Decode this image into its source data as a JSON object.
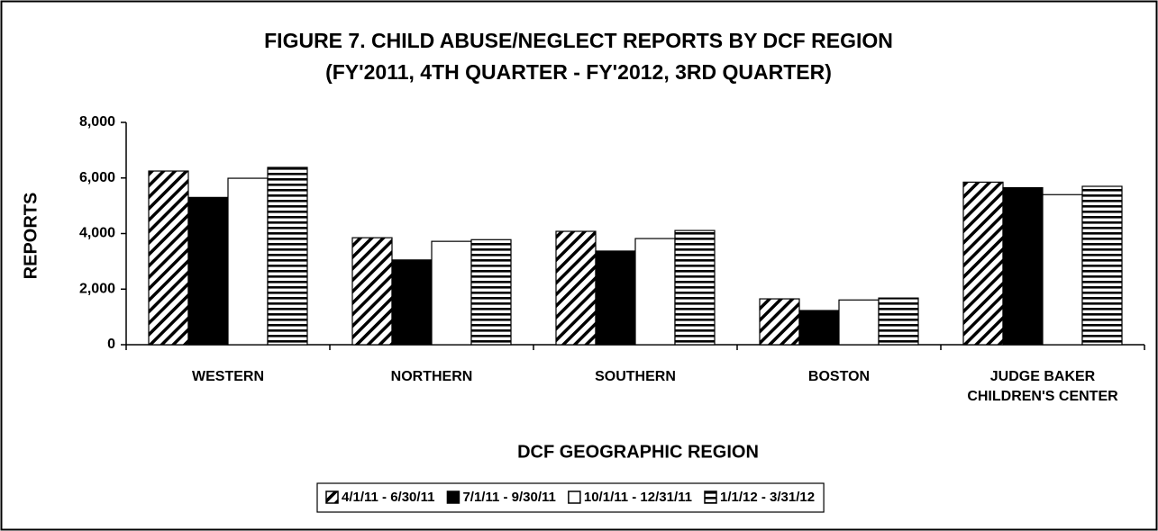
{
  "chart_data": {
    "type": "bar",
    "title": [
      "FIGURE 7. CHILD ABUSE/NEGLECT REPORTS BY DCF REGION",
      "(FY'2011, 4TH QUARTER - FY'2012, 3RD QUARTER)"
    ],
    "y_label": "REPORTS",
    "x_label": "DCF GEOGRAPHIC REGION",
    "categories": [
      "WESTERN",
      "NORTHERN",
      "SOUTHERN",
      "BOSTON",
      "JUDGE BAKER\nCHILDREN'S CENTER"
    ],
    "series": [
      {
        "name": "4/1/11 - 6/30/11",
        "color": "#000000",
        "pattern": "diagonal",
        "values": [
          6250,
          3850,
          4080,
          1650,
          5850
        ]
      },
      {
        "name": "7/1/11 - 9/30/11",
        "color": "#000000",
        "pattern": "solid",
        "values": [
          5300,
          3050,
          3370,
          1230,
          5650
        ]
      },
      {
        "name": "10/1/11 - 12/31/11",
        "color": "#ffffff",
        "pattern": "solid",
        "values": [
          5990,
          3720,
          3820,
          1610,
          5400
        ]
      },
      {
        "name": "1/1/12 - 3/31/12",
        "color": "#000000",
        "pattern": "horizontal",
        "values": [
          6380,
          3780,
          4110,
          1680,
          5700
        ]
      }
    ],
    "ylim": [
      0,
      8000
    ],
    "yticks": [
      0,
      {
        "value": 2000,
        "label": "2,000"
      },
      {
        "value": 4000,
        "label": "4,000"
      },
      {
        "value": 6000,
        "label": "6,000"
      },
      {
        "value": 8000,
        "label": "8,000"
      }
    ],
    "grid": false,
    "legend": "bottom"
  }
}
